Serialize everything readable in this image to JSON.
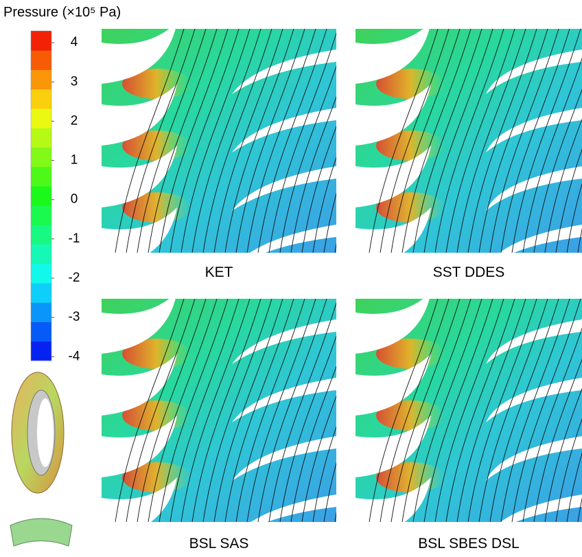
{
  "chart_data": {
    "type": "contour-panels",
    "colorbar": {
      "title": "Pressure (×10⁵ Pa)",
      "lim": [
        -4.1,
        4.3
      ],
      "ticks": [
        4,
        3,
        2,
        1,
        0,
        -1,
        -2,
        -3,
        -4
      ]
    },
    "panels": [
      "KET",
      "SST DDES",
      "BSL SAS",
      "BSL SBES DSL"
    ]
  }
}
